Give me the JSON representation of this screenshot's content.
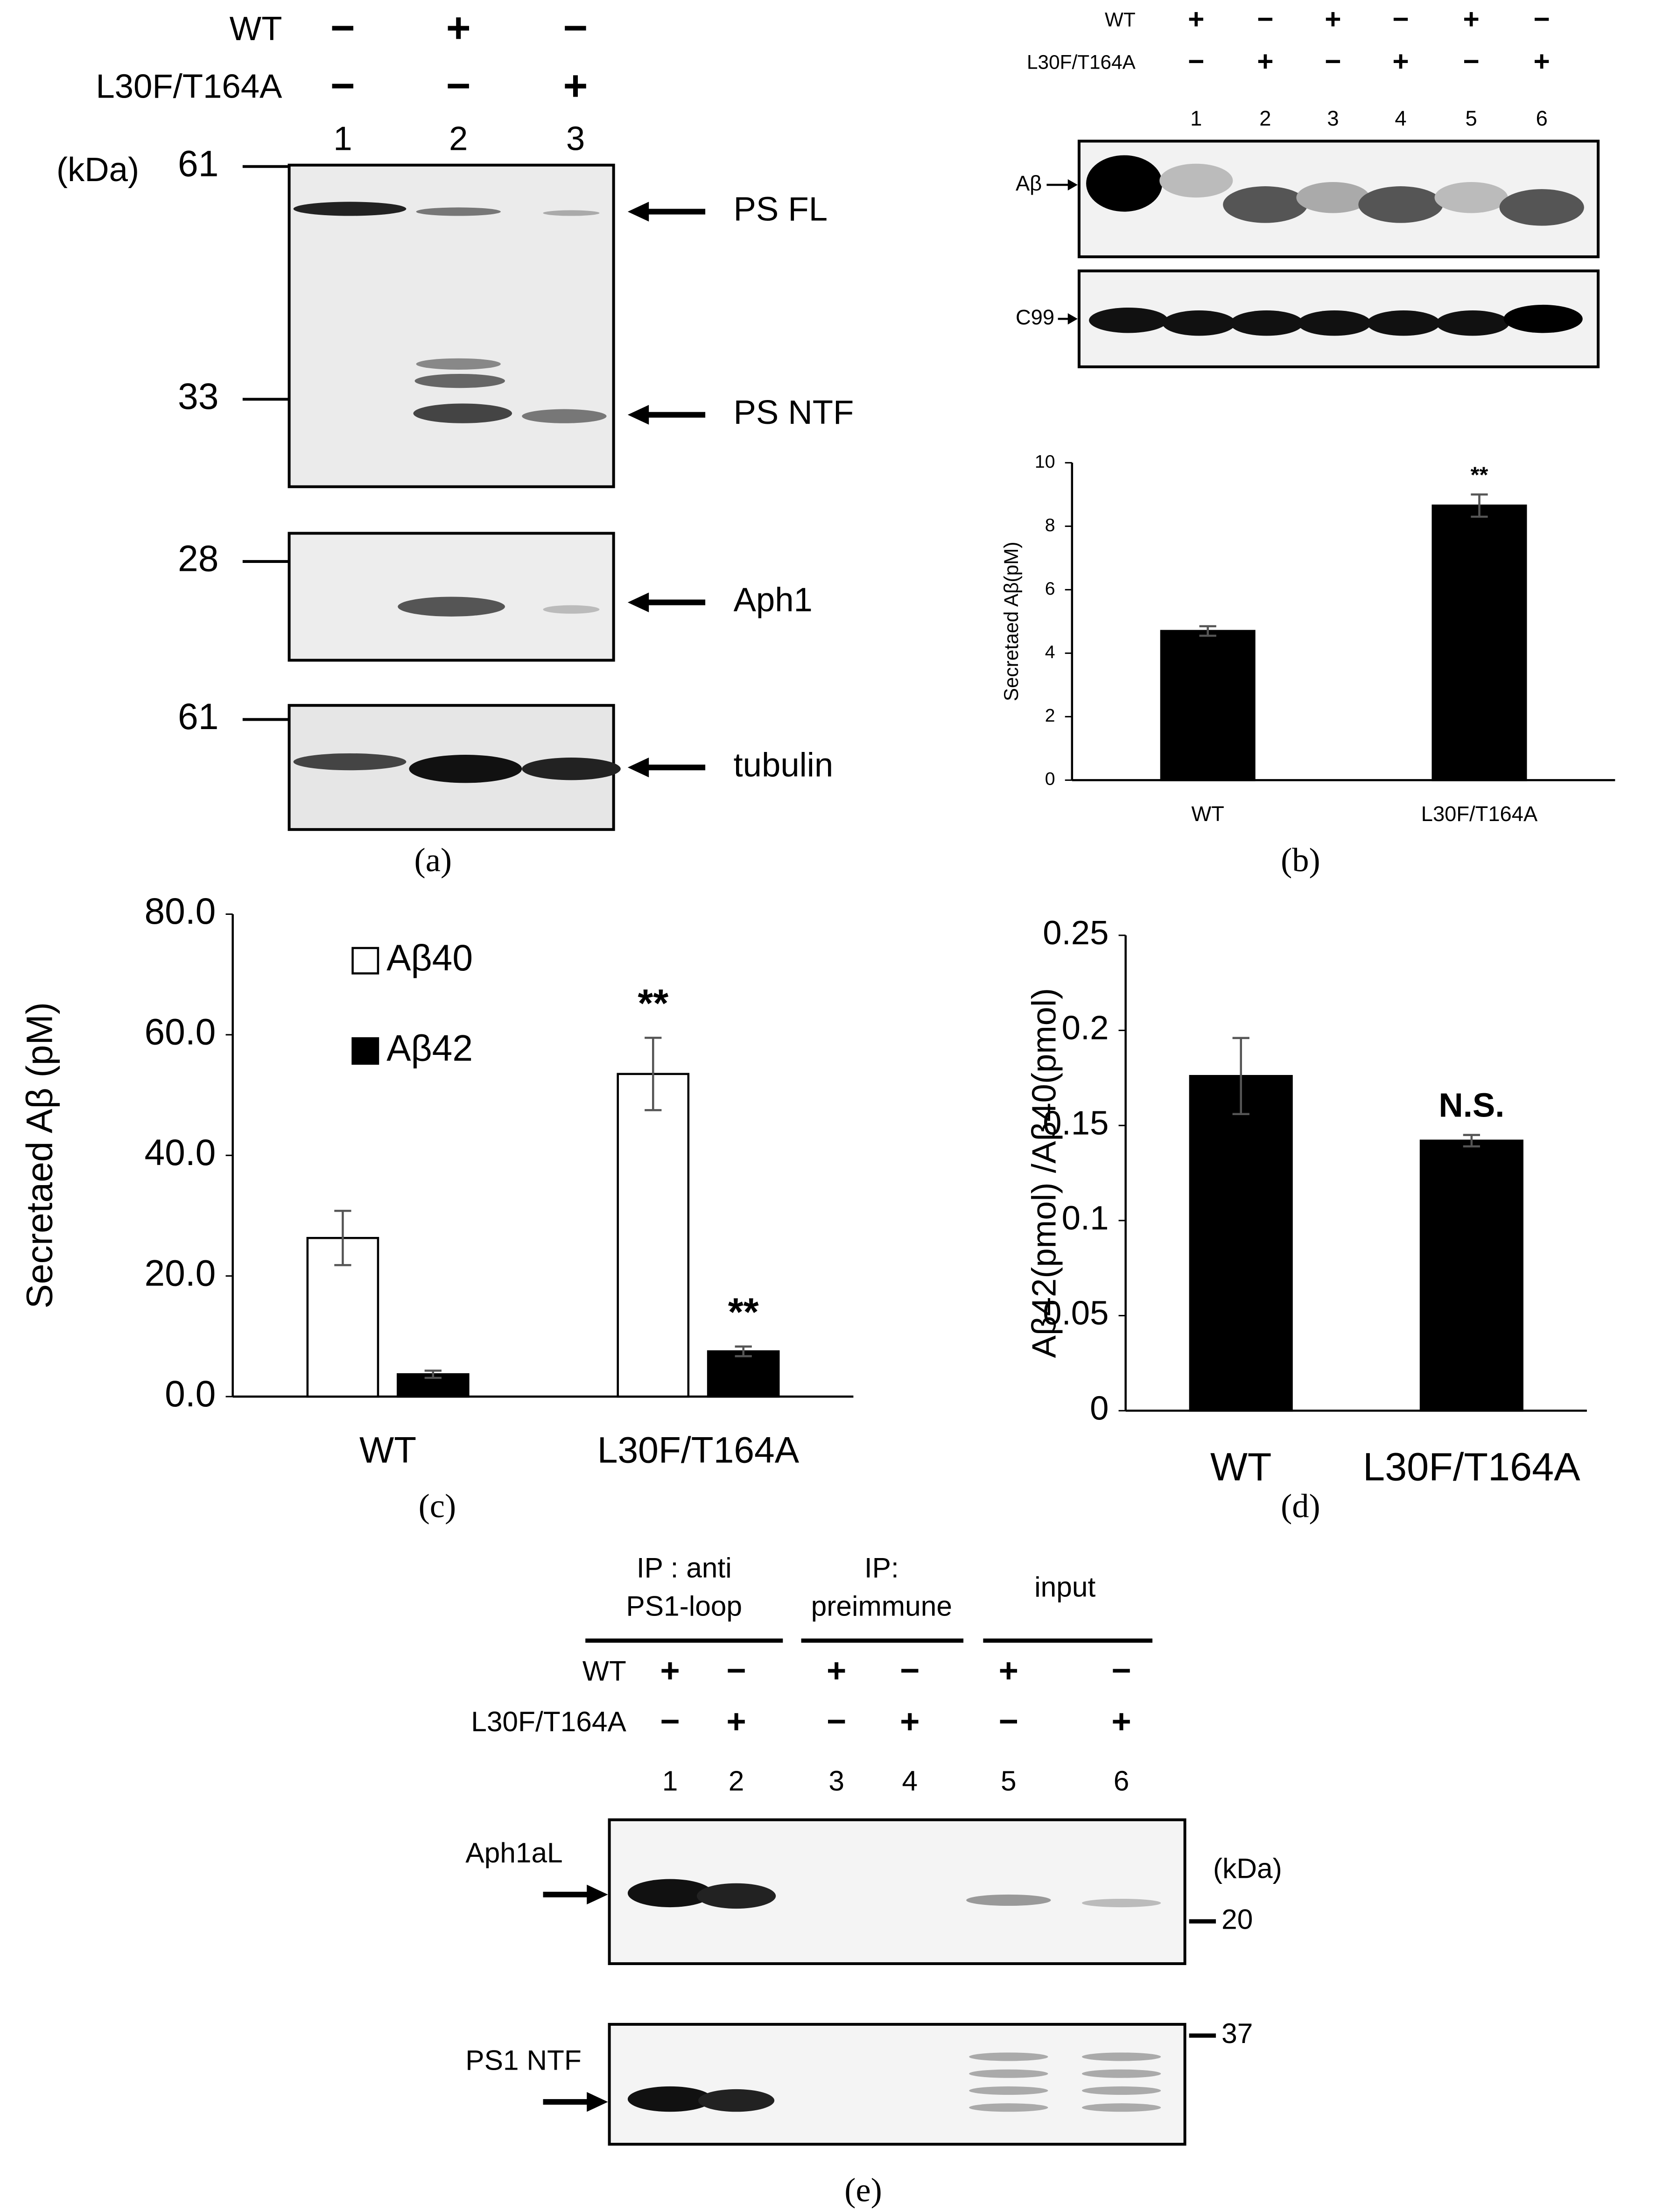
{
  "blots": {
    "a": {
      "label": "(a)",
      "rows": [
        {
          "name": "WT",
          "signs": [
            "−",
            "+",
            "−"
          ]
        },
        {
          "name": "L30F/T164A",
          "signs": [
            "−",
            "−",
            "+"
          ]
        }
      ],
      "lanes": [
        "1",
        "2",
        "3"
      ],
      "unit": "(kDa)",
      "markers": [
        "61",
        "33",
        "28",
        "61"
      ],
      "bands": [
        "PS FL",
        "PS NTF",
        "Aph1",
        "tubulin"
      ]
    },
    "b": {
      "label": "(b)",
      "rows": [
        {
          "name": "WT",
          "signs": [
            "+",
            "−",
            "+",
            "−",
            "+",
            "−"
          ]
        },
        {
          "name": "L30F/T164A",
          "signs": [
            "−",
            "+",
            "−",
            "+",
            "−",
            "+"
          ]
        }
      ],
      "lanes": [
        "1",
        "2",
        "3",
        "4",
        "5",
        "6"
      ],
      "bands": [
        "Aβ",
        "C99"
      ]
    },
    "e": {
      "label": "(e)",
      "groups": [
        [
          "IP : anti",
          "PS1-loop"
        ],
        [
          "IP:",
          "preimmune"
        ],
        [
          "input"
        ]
      ],
      "rows": [
        {
          "name": "WT",
          "signs": [
            "+",
            "−",
            "+",
            "−",
            "+",
            "−"
          ]
        },
        {
          "name": "L30F/T164A",
          "signs": [
            "−",
            "+",
            "−",
            "+",
            "−",
            "+"
          ]
        }
      ],
      "lanes": [
        "1",
        "2",
        "3",
        "4",
        "5",
        "6"
      ],
      "unit": "(kDa)",
      "markers": [
        "20",
        "37"
      ],
      "bands": [
        "Aph1aL",
        "PS1 NTF"
      ]
    }
  },
  "chart_data": [
    {
      "type": "bar",
      "ylabel": "Secretaed Aβ(pM)",
      "categories": [
        "WT",
        "L30F/T164A"
      ],
      "values": [
        4.7,
        8.65
      ],
      "errors": [
        0.15,
        0.35
      ],
      "significance": [
        null,
        "**"
      ],
      "color": "#000000",
      "ylim": [
        0,
        10
      ],
      "yticks": [
        0,
        2,
        4,
        6,
        8,
        10
      ]
    },
    {
      "type": "bar",
      "label": "(c)",
      "ylabel": "Secretaed Aβ (pM)",
      "categories": [
        "WT",
        "L30F/T164A"
      ],
      "series": [
        {
          "name": "Aβ40",
          "color": "#ffffff",
          "values": [
            26.3,
            53.5
          ],
          "errors": [
            4.5,
            6.0
          ],
          "significance": [
            null,
            "**"
          ]
        },
        {
          "name": "Aβ42",
          "color": "#000000",
          "values": [
            3.7,
            7.5
          ],
          "errors": [
            0.6,
            0.8
          ],
          "significance": [
            null,
            "**"
          ]
        }
      ],
      "ylim": [
        0,
        80
      ],
      "yticks": [
        {
          "value": 0,
          "label": "0.0"
        },
        {
          "value": 20,
          "label": "20.0"
        },
        {
          "value": 40,
          "label": "40.0"
        },
        {
          "value": 60,
          "label": "60.0"
        },
        {
          "value": 80,
          "label": "80.0"
        }
      ]
    },
    {
      "type": "bar",
      "label": "(d)",
      "ylabel": "Aβ42(pmol) /Aβ40(pmol)",
      "categories": [
        "WT",
        "L30F/T164A"
      ],
      "values": [
        0.176,
        0.142
      ],
      "errors": [
        0.02,
        0.003
      ],
      "significance": [
        null,
        "N.S."
      ],
      "color": "#000000",
      "ylim": [
        0,
        0.25
      ],
      "yticks": [
        0,
        0.05,
        0.1,
        0.15,
        0.2,
        0.25
      ]
    }
  ]
}
